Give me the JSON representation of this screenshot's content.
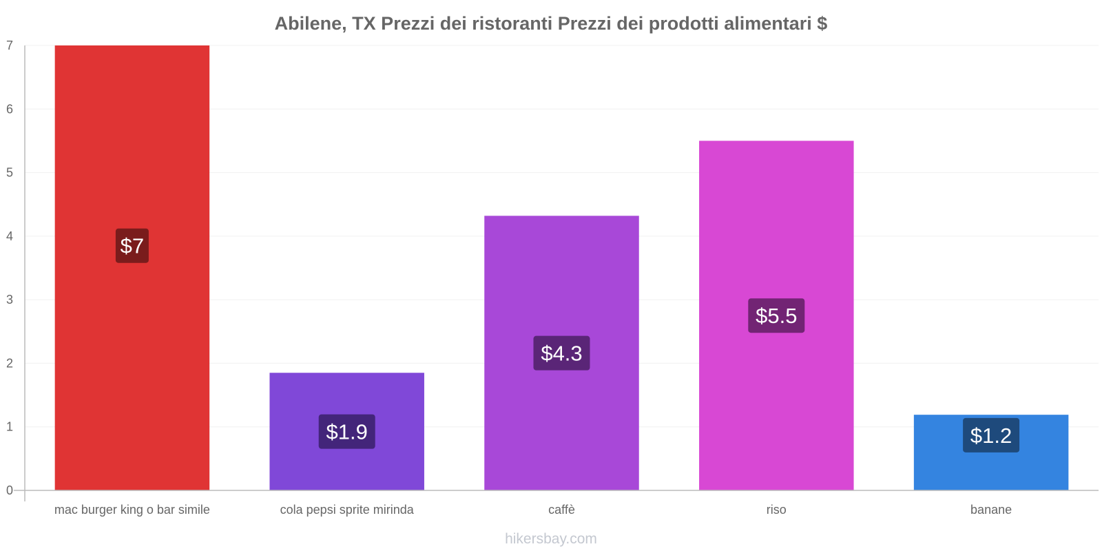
{
  "chart_data": {
    "type": "bar",
    "title": "Abilene, TX Prezzi dei ristoranti Prezzi dei prodotti alimentari $",
    "categories": [
      "mac burger king o bar simile",
      "cola pepsi sprite mirinda",
      "caffè",
      "riso",
      "banane"
    ],
    "values": [
      7,
      1.85,
      4.32,
      5.5,
      1.19
    ],
    "data_labels": [
      "$7",
      "$1.9",
      "$4.3",
      "$5.5",
      "$1.2"
    ],
    "colors": [
      "#e03434",
      "#8048d8",
      "#a848d8",
      "#d848d4",
      "#3484e0"
    ],
    "label_bg_colors": [
      "#7a1c1c",
      "#43257a",
      "#5a2577",
      "#722474",
      "#1e4a7c"
    ],
    "ylim": [
      0,
      7
    ],
    "yticks": [
      "0",
      "1",
      "2",
      "3",
      "4",
      "5",
      "6",
      "7"
    ],
    "xlabel": "",
    "ylabel": "",
    "grid": true
  },
  "footer": {
    "source": "hikersbay.com"
  }
}
